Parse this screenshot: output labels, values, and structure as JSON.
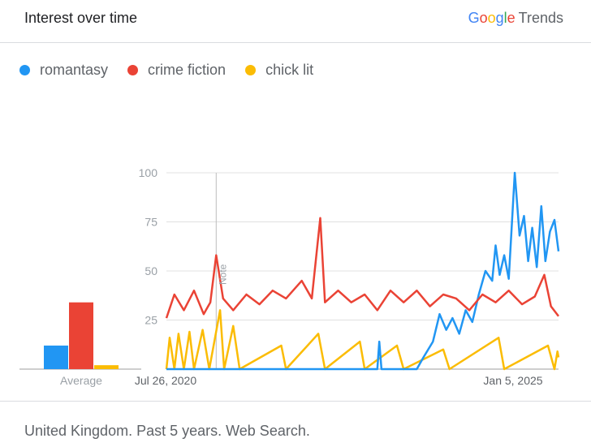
{
  "header": {
    "title": "Interest over time",
    "brand_google": "Google",
    "brand_trends": "Trends"
  },
  "footer": {
    "text": "United Kingdom. Past 5 years. Web Search."
  },
  "chart_data": {
    "type": "line",
    "title": "Interest over time",
    "x_labels": [
      "Jul 26, 2020",
      "Jan 5, 2025"
    ],
    "x_range": [
      "2020-07-26",
      "2025-07-20"
    ],
    "y_ticks": [
      25,
      50,
      75,
      100
    ],
    "ylim": [
      0,
      100
    ],
    "grid": true,
    "legend_position": "top-left",
    "annotation": {
      "label": "Note",
      "date": "2021-03-14"
    },
    "average_label": "Average",
    "averages": [
      {
        "name": "romantasy",
        "value": 12
      },
      {
        "name": "crime fiction",
        "value": 34
      },
      {
        "name": "chick lit",
        "value": 2
      }
    ],
    "series": [
      {
        "name": "romantasy",
        "color": "#2196F3",
        "points": [
          [
            "2020-07-26",
            0
          ],
          [
            "2023-04-01",
            0
          ],
          [
            "2023-04-10",
            14
          ],
          [
            "2023-04-20",
            0
          ],
          [
            "2023-10-01",
            0
          ],
          [
            "2023-11-01",
            6
          ],
          [
            "2023-12-15",
            14
          ],
          [
            "2024-01-15",
            28
          ],
          [
            "2024-02-15",
            20
          ],
          [
            "2024-03-15",
            26
          ],
          [
            "2024-04-15",
            18
          ],
          [
            "2024-05-15",
            30
          ],
          [
            "2024-06-15",
            24
          ],
          [
            "2024-07-15",
            38
          ],
          [
            "2024-08-15",
            50
          ],
          [
            "2024-09-15",
            45
          ],
          [
            "2024-10-01",
            63
          ],
          [
            "2024-10-20",
            48
          ],
          [
            "2024-11-10",
            58
          ],
          [
            "2024-12-01",
            46
          ],
          [
            "2024-12-29",
            100
          ],
          [
            "2025-01-20",
            68
          ],
          [
            "2025-02-10",
            78
          ],
          [
            "2025-03-01",
            55
          ],
          [
            "2025-03-20",
            72
          ],
          [
            "2025-04-10",
            52
          ],
          [
            "2025-05-01",
            83
          ],
          [
            "2025-05-20",
            55
          ],
          [
            "2025-06-10",
            70
          ],
          [
            "2025-07-01",
            76
          ],
          [
            "2025-07-20",
            60
          ]
        ]
      },
      {
        "name": "crime fiction",
        "color": "#EA4335",
        "points": [
          [
            "2020-07-26",
            26
          ],
          [
            "2020-09-01",
            38
          ],
          [
            "2020-10-15",
            30
          ],
          [
            "2020-12-01",
            40
          ],
          [
            "2021-01-15",
            28
          ],
          [
            "2021-02-15",
            34
          ],
          [
            "2021-03-14",
            58
          ],
          [
            "2021-04-15",
            36
          ],
          [
            "2021-06-01",
            30
          ],
          [
            "2021-08-01",
            38
          ],
          [
            "2021-10-01",
            33
          ],
          [
            "2021-12-01",
            40
          ],
          [
            "2022-02-01",
            36
          ],
          [
            "2022-04-15",
            45
          ],
          [
            "2022-06-01",
            36
          ],
          [
            "2022-07-10",
            77
          ],
          [
            "2022-08-01",
            34
          ],
          [
            "2022-10-01",
            40
          ],
          [
            "2022-12-01",
            34
          ],
          [
            "2023-02-01",
            38
          ],
          [
            "2023-04-01",
            30
          ],
          [
            "2023-06-01",
            40
          ],
          [
            "2023-08-01",
            34
          ],
          [
            "2023-10-01",
            40
          ],
          [
            "2023-12-01",
            32
          ],
          [
            "2024-02-01",
            38
          ],
          [
            "2024-04-01",
            36
          ],
          [
            "2024-06-01",
            30
          ],
          [
            "2024-08-01",
            38
          ],
          [
            "2024-10-01",
            34
          ],
          [
            "2024-12-01",
            40
          ],
          [
            "2025-02-01",
            33
          ],
          [
            "2025-04-01",
            37
          ],
          [
            "2025-05-15",
            48
          ],
          [
            "2025-06-15",
            32
          ],
          [
            "2025-07-20",
            27
          ]
        ]
      },
      {
        "name": "chick lit",
        "color": "#FBBC04",
        "points": [
          [
            "2020-07-26",
            0
          ],
          [
            "2020-08-10",
            16
          ],
          [
            "2020-09-01",
            0
          ],
          [
            "2020-09-20",
            18
          ],
          [
            "2020-10-15",
            0
          ],
          [
            "2020-11-10",
            19
          ],
          [
            "2020-12-01",
            0
          ],
          [
            "2021-01-10",
            20
          ],
          [
            "2021-02-10",
            0
          ],
          [
            "2021-04-01",
            30
          ],
          [
            "2021-04-20",
            0
          ],
          [
            "2021-06-01",
            22
          ],
          [
            "2021-07-01",
            0
          ],
          [
            "2022-01-10",
            12
          ],
          [
            "2022-02-01",
            0
          ],
          [
            "2022-07-01",
            18
          ],
          [
            "2022-08-01",
            0
          ],
          [
            "2023-01-10",
            14
          ],
          [
            "2023-02-01",
            0
          ],
          [
            "2023-07-01",
            12
          ],
          [
            "2023-08-01",
            0
          ],
          [
            "2024-02-01",
            10
          ],
          [
            "2024-03-01",
            0
          ],
          [
            "2024-10-15",
            16
          ],
          [
            "2024-11-10",
            0
          ],
          [
            "2025-06-01",
            12
          ],
          [
            "2025-07-01",
            0
          ],
          [
            "2025-07-15",
            9
          ],
          [
            "2025-07-20",
            6
          ]
        ]
      }
    ]
  }
}
